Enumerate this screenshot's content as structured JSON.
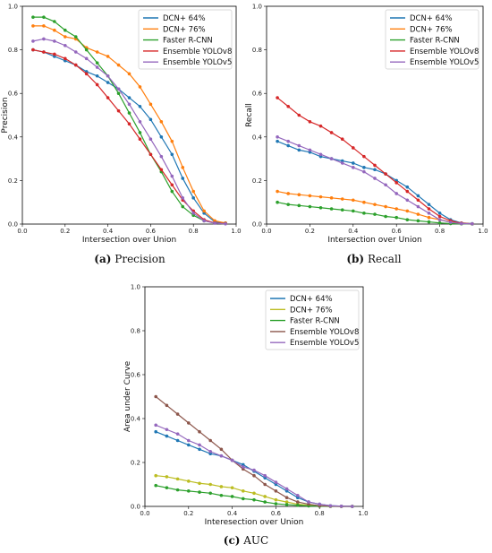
{
  "chart_data": [
    {
      "type": "line",
      "caption_tag": "(a)",
      "caption_text": "Precision",
      "xlabel": "Intersection over Union",
      "ylabel": "Precision",
      "xlim": [
        0.0,
        1.0
      ],
      "ylim": [
        0.0,
        1.0
      ],
      "xticks": [
        "0.0",
        "0.2",
        "0.4",
        "0.6",
        "0.8",
        "1.0"
      ],
      "yticks": [
        "0.0",
        "0.2",
        "0.4",
        "0.6",
        "0.8",
        "1.0"
      ],
      "legend_position": "top-right",
      "grid": false,
      "x": [
        0.05,
        0.1,
        0.15,
        0.2,
        0.25,
        0.3,
        0.35,
        0.4,
        0.45,
        0.5,
        0.55,
        0.6,
        0.65,
        0.7,
        0.75,
        0.8,
        0.85,
        0.9,
        0.95
      ],
      "series": [
        {
          "name": "DCN+ 64%",
          "color": "#1f77b4",
          "values": [
            0.8,
            0.79,
            0.77,
            0.75,
            0.73,
            0.7,
            0.68,
            0.65,
            0.62,
            0.58,
            0.54,
            0.48,
            0.4,
            0.32,
            0.21,
            0.12,
            0.05,
            0.01,
            0.005
          ]
        },
        {
          "name": "DCN+ 76%",
          "color": "#ff7f0e",
          "values": [
            0.91,
            0.91,
            0.89,
            0.86,
            0.85,
            0.81,
            0.79,
            0.77,
            0.73,
            0.69,
            0.63,
            0.55,
            0.47,
            0.38,
            0.26,
            0.15,
            0.06,
            0.015,
            0.005
          ]
        },
        {
          "name": "Faster R-CNN",
          "color": "#2ca02c",
          "values": [
            0.95,
            0.95,
            0.93,
            0.89,
            0.86,
            0.8,
            0.74,
            0.68,
            0.6,
            0.51,
            0.42,
            0.32,
            0.24,
            0.15,
            0.08,
            0.04,
            0.015,
            0.005,
            0.002
          ]
        },
        {
          "name": "Ensemble YOLOv8",
          "color": "#d62728",
          "values": [
            0.8,
            0.79,
            0.78,
            0.76,
            0.73,
            0.69,
            0.64,
            0.58,
            0.52,
            0.46,
            0.39,
            0.32,
            0.25,
            0.18,
            0.11,
            0.06,
            0.02,
            0.005,
            0.002
          ]
        },
        {
          "name": "Ensemble YOLOv5",
          "color": "#9467bd",
          "values": [
            0.84,
            0.85,
            0.84,
            0.82,
            0.79,
            0.76,
            0.72,
            0.68,
            0.62,
            0.55,
            0.47,
            0.39,
            0.31,
            0.22,
            0.12,
            0.05,
            0.015,
            0.004,
            0.001
          ]
        }
      ]
    },
    {
      "type": "line",
      "caption_tag": "(b)",
      "caption_text": "Recall",
      "xlabel": "Intersection over Union",
      "ylabel": "Recall",
      "xlim": [
        0.0,
        1.0
      ],
      "ylim": [
        0.0,
        1.0
      ],
      "xticks": [
        "0.0",
        "0.2",
        "0.4",
        "0.6",
        "0.8",
        "1.0"
      ],
      "yticks": [
        "0.0",
        "0.2",
        "0.4",
        "0.6",
        "0.8",
        "1.0"
      ],
      "legend_position": "top-right",
      "grid": false,
      "x": [
        0.05,
        0.1,
        0.15,
        0.2,
        0.25,
        0.3,
        0.35,
        0.4,
        0.45,
        0.5,
        0.55,
        0.6,
        0.65,
        0.7,
        0.75,
        0.8,
        0.85,
        0.9,
        0.95
      ],
      "series": [
        {
          "name": "DCN+ 64%",
          "color": "#1f77b4",
          "values": [
            0.38,
            0.36,
            0.34,
            0.33,
            0.31,
            0.3,
            0.29,
            0.28,
            0.26,
            0.25,
            0.23,
            0.2,
            0.17,
            0.13,
            0.09,
            0.05,
            0.02,
            0.005,
            0.002
          ]
        },
        {
          "name": "DCN+ 76%",
          "color": "#ff7f0e",
          "values": [
            0.15,
            0.14,
            0.135,
            0.13,
            0.125,
            0.12,
            0.115,
            0.11,
            0.1,
            0.09,
            0.08,
            0.07,
            0.06,
            0.045,
            0.03,
            0.02,
            0.01,
            0.004,
            0.001
          ]
        },
        {
          "name": "Faster R-CNN",
          "color": "#2ca02c",
          "values": [
            0.1,
            0.09,
            0.085,
            0.08,
            0.075,
            0.07,
            0.065,
            0.06,
            0.05,
            0.045,
            0.035,
            0.03,
            0.02,
            0.015,
            0.01,
            0.005,
            0.002,
            0.001,
            0.0
          ]
        },
        {
          "name": "Ensemble YOLOv8",
          "color": "#d62728",
          "values": [
            0.58,
            0.54,
            0.5,
            0.47,
            0.45,
            0.42,
            0.39,
            0.35,
            0.31,
            0.27,
            0.23,
            0.19,
            0.15,
            0.11,
            0.07,
            0.035,
            0.015,
            0.004,
            0.001
          ]
        },
        {
          "name": "Ensemble YOLOv5",
          "color": "#9467bd",
          "values": [
            0.4,
            0.38,
            0.36,
            0.34,
            0.32,
            0.3,
            0.28,
            0.26,
            0.24,
            0.21,
            0.18,
            0.14,
            0.11,
            0.08,
            0.05,
            0.02,
            0.008,
            0.002,
            0.001
          ]
        }
      ]
    },
    {
      "type": "line",
      "caption_tag": "(c)",
      "caption_text": "AUC",
      "xlabel": "Interesection over Union",
      "ylabel": "Area under Curve",
      "xlim": [
        0.0,
        1.0
      ],
      "ylim": [
        0.0,
        1.0
      ],
      "xticks": [
        "0.0",
        "0.2",
        "0.4",
        "0.6",
        "0.8",
        "1.0"
      ],
      "yticks": [
        "0.0",
        "0.2",
        "0.4",
        "0.6",
        "0.8",
        "1.0"
      ],
      "legend_position": "top-right",
      "grid": false,
      "x": [
        0.05,
        0.1,
        0.15,
        0.2,
        0.25,
        0.3,
        0.35,
        0.4,
        0.45,
        0.5,
        0.55,
        0.6,
        0.65,
        0.7,
        0.75,
        0.8,
        0.85,
        0.9,
        0.95
      ],
      "series": [
        {
          "name": "DCN+ 64%",
          "color": "#1f77b4",
          "values": [
            0.34,
            0.32,
            0.3,
            0.28,
            0.26,
            0.24,
            0.23,
            0.21,
            0.19,
            0.16,
            0.13,
            0.1,
            0.07,
            0.04,
            0.02,
            0.01,
            0.003,
            0.001,
            0.0
          ]
        },
        {
          "name": "DCN+ 76%",
          "color": "#bcbd22",
          "values": [
            0.14,
            0.135,
            0.125,
            0.115,
            0.105,
            0.1,
            0.09,
            0.085,
            0.07,
            0.06,
            0.045,
            0.03,
            0.02,
            0.01,
            0.005,
            0.002,
            0.001,
            0.0,
            0.0
          ]
        },
        {
          "name": "Faster R-CNN",
          "color": "#2ca02c",
          "values": [
            0.095,
            0.085,
            0.075,
            0.07,
            0.065,
            0.06,
            0.05,
            0.045,
            0.035,
            0.03,
            0.02,
            0.012,
            0.008,
            0.005,
            0.002,
            0.001,
            0.0,
            0.0,
            0.0
          ]
        },
        {
          "name": "Ensemble YOLOv8",
          "color": "#8c564b",
          "values": [
            0.5,
            0.46,
            0.42,
            0.38,
            0.34,
            0.3,
            0.26,
            0.21,
            0.17,
            0.14,
            0.1,
            0.07,
            0.04,
            0.02,
            0.01,
            0.003,
            0.001,
            0.0,
            0.0
          ]
        },
        {
          "name": "Ensemble YOLOv5",
          "color": "#9467bd",
          "values": [
            0.37,
            0.35,
            0.33,
            0.3,
            0.28,
            0.25,
            0.23,
            0.21,
            0.18,
            0.165,
            0.14,
            0.11,
            0.08,
            0.05,
            0.02,
            0.01,
            0.003,
            0.001,
            0.0
          ]
        }
      ]
    }
  ]
}
